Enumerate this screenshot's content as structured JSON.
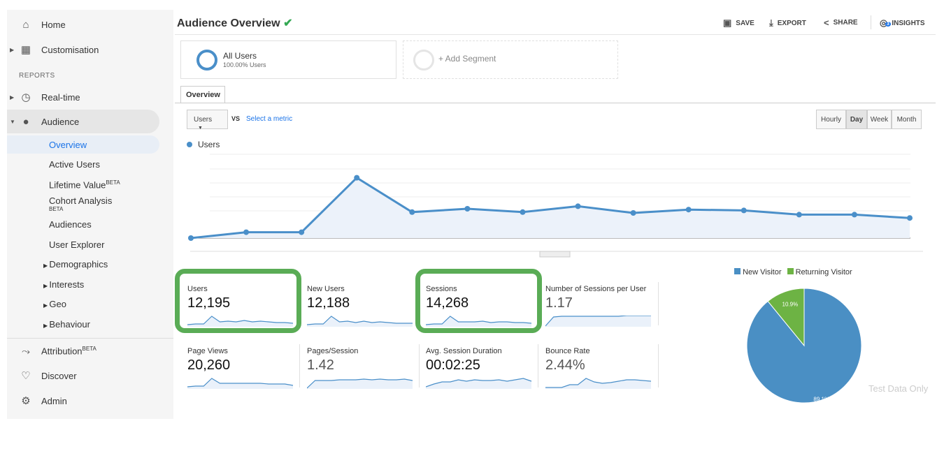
{
  "sidebar": {
    "items": [
      {
        "label": "Home",
        "icon": "home-icon"
      },
      {
        "label": "Customisation",
        "icon": "dashboard-icon"
      }
    ],
    "reports_heading": "REPORTS",
    "realtime": "Real-time",
    "audience": "Audience",
    "audience_items": [
      "Overview",
      "Active Users",
      "Lifetime Value",
      "Cohort Analysis",
      "Audiences",
      "User Explorer",
      "Demographics",
      "Interests",
      "Geo",
      "Behaviour"
    ],
    "beta": "BETA",
    "attribution": "Attribution",
    "discover": "Discover",
    "admin": "Admin"
  },
  "header": {
    "title": "Audience Overview",
    "save": "SAVE",
    "export": "EXPORT",
    "share": "SHARE",
    "insights": "INSIGHTS",
    "insights_badge": "3"
  },
  "segments": {
    "all_users": "All Users",
    "all_users_pct": "100.00% Users",
    "add": "+ Add Segment"
  },
  "tabs": [
    "Overview"
  ],
  "controls": {
    "metric": "Users",
    "vs": "VS",
    "select_metric": "Select a metric",
    "periods": [
      "Hourly",
      "Day",
      "Week",
      "Month"
    ],
    "active_period": "Day"
  },
  "chart_data": {
    "type": "area",
    "legend": "Users",
    "color": "#4a8fc9",
    "values": [
      0,
      7,
      7,
      72,
      31,
      35,
      31,
      38,
      30,
      34,
      33,
      28,
      28,
      24
    ],
    "grid": true
  },
  "metrics": [
    {
      "label": "Users",
      "value": "12,195",
      "spark": [
        2,
        3,
        3,
        14,
        6,
        7,
        6,
        8,
        6,
        7,
        6,
        5,
        5,
        4
      ],
      "highlighted": true
    },
    {
      "label": "New Users",
      "value": "12,188",
      "spark": [
        2,
        3,
        3,
        14,
        6,
        7,
        5,
        7,
        5,
        6,
        5,
        4,
        4,
        4
      ]
    },
    {
      "label": "Sessions",
      "value": "14,268",
      "spark": [
        2,
        3,
        3,
        14,
        6,
        6,
        6,
        7,
        5,
        6,
        6,
        5,
        5,
        4
      ],
      "highlighted": true
    },
    {
      "label": "Number of Sessions per User",
      "value": "1.17",
      "spark": [
        0,
        13,
        14,
        14,
        14,
        14,
        14,
        14,
        14,
        14,
        15,
        15,
        15,
        15
      ]
    },
    {
      "label": "Page Views",
      "value": "20,260",
      "spark": [
        2,
        3,
        3,
        14,
        7,
        7,
        7,
        7,
        7,
        7,
        6,
        6,
        6,
        4
      ]
    },
    {
      "label": "Pages/Session",
      "value": "1.42",
      "spark": [
        0,
        11,
        11,
        11,
        12,
        12,
        12,
        13,
        12,
        13,
        12,
        12,
        13,
        11
      ]
    },
    {
      "label": "Avg. Session Duration",
      "value": "00:02:25",
      "spark": [
        2,
        6,
        9,
        9,
        12,
        10,
        12,
        11,
        11,
        12,
        10,
        12,
        14,
        10
      ]
    },
    {
      "label": "Bounce Rate",
      "value": "2.44%",
      "spark": [
        1,
        1,
        1,
        5,
        5,
        14,
        9,
        7,
        8,
        10,
        12,
        12,
        11,
        10
      ]
    }
  ],
  "pie": {
    "legend": [
      {
        "label": "New Visitor",
        "color": "#4a8fc4"
      },
      {
        "label": "Returning Visitor",
        "color": "#6db344"
      }
    ],
    "slices": [
      {
        "label": "89.1%",
        "value": 89.1
      },
      {
        "label": "10.9%",
        "value": 10.9
      }
    ],
    "watermark": "Test Data Only"
  }
}
